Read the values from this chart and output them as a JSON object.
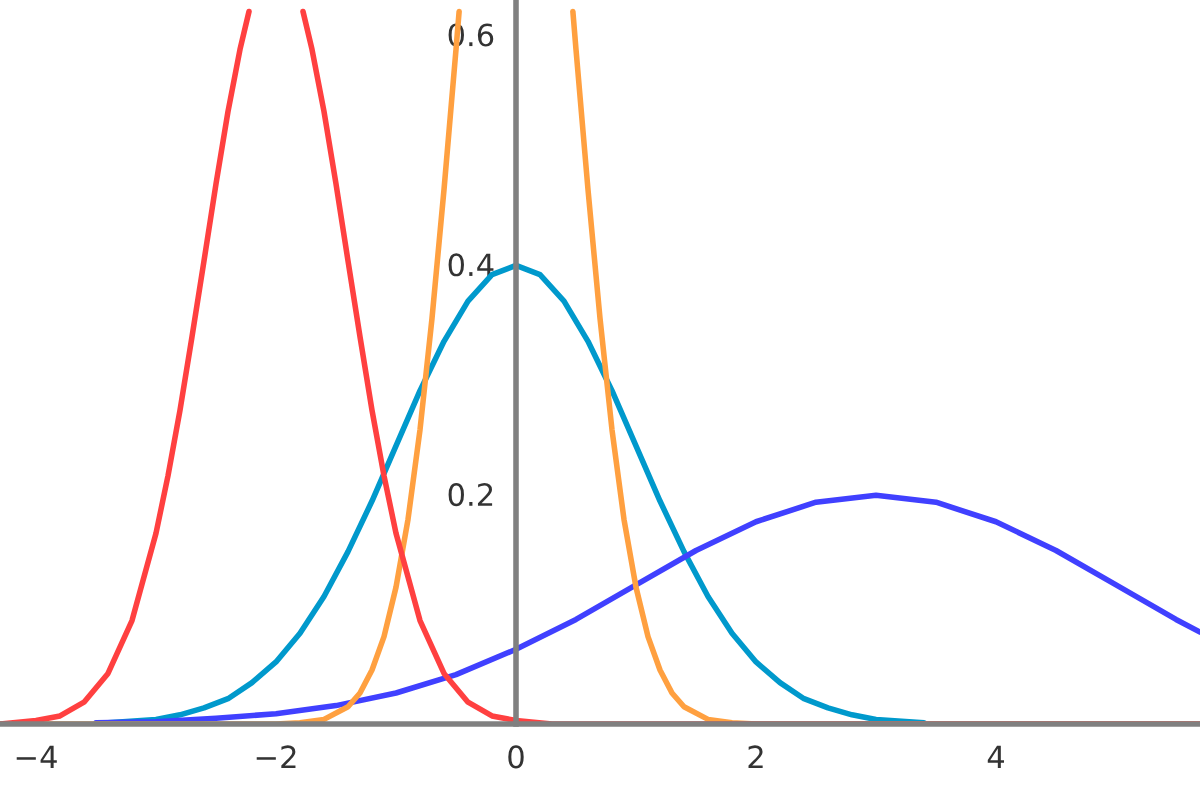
{
  "chart_data": {
    "type": "line",
    "xlim": [
      -4.3,
      5.7
    ],
    "ylim": [
      0,
      0.63
    ],
    "xticks": [
      {
        "value": -4,
        "label": "−4"
      },
      {
        "value": -2,
        "label": "−2"
      },
      0,
      2,
      4
    ],
    "yticks": [
      0.2,
      0.4,
      0.6
    ],
    "grid": false,
    "legend": false,
    "marker": "none",
    "line_style": "solid",
    "series": [
      {
        "color": "#0099cc",
        "x": [
          -3.4,
          -3,
          -2.8,
          -2.6,
          -2.4,
          -2.2,
          -2,
          -1.8,
          -1.6,
          -1.4,
          -1.2,
          -1,
          -0.8,
          -0.6,
          -0.4,
          -0.2,
          0,
          0.2,
          0.4,
          0.6,
          0.8,
          1,
          1.2,
          1.4,
          1.6,
          1.8,
          2,
          2.2,
          2.4,
          2.6,
          2.8,
          3,
          3.4
        ],
        "values": [
          0.001,
          0.004,
          0.008,
          0.014,
          0.022,
          0.036,
          0.054,
          0.079,
          0.111,
          0.15,
          0.194,
          0.242,
          0.29,
          0.333,
          0.368,
          0.391,
          0.399,
          0.391,
          0.368,
          0.333,
          0.29,
          0.242,
          0.194,
          0.15,
          0.111,
          0.079,
          0.054,
          0.036,
          0.022,
          0.014,
          0.008,
          0.004,
          0.001
        ]
      },
      {
        "color": "#4040ff",
        "x": [
          -3.5,
          -3,
          -2.5,
          -2,
          -1.5,
          -1,
          -0.5,
          0,
          0.5,
          1,
          1.5,
          2,
          2.5,
          3,
          3.5,
          4,
          4.5,
          5,
          5.5,
          5.7
        ],
        "values": [
          0.001,
          0.002,
          0.005,
          0.009,
          0.016,
          0.027,
          0.043,
          0.065,
          0.091,
          0.121,
          0.151,
          0.176,
          0.193,
          0.199,
          0.193,
          0.176,
          0.151,
          0.121,
          0.091,
          0.08
        ]
      },
      {
        "color": "#ffa040",
        "x": [
          -4.3,
          -2,
          -1.8,
          -1.6,
          -1.4,
          -1.3,
          -1.2,
          -1.1,
          -1,
          -0.9,
          -0.8,
          -0.7,
          -0.6,
          -0.5,
          -0.474,
          0,
          0.474,
          0.5,
          0.6,
          0.7,
          0.8,
          0.9,
          1,
          1.1,
          1.2,
          1.3,
          1.4,
          1.6,
          1.8,
          2,
          5.7
        ],
        "values": [
          0,
          0,
          0.001,
          0.004,
          0.015,
          0.027,
          0.047,
          0.076,
          0.119,
          0.178,
          0.256,
          0.353,
          0.465,
          0.587,
          0.62,
          null,
          0.62,
          0.587,
          0.465,
          0.353,
          0.256,
          0.178,
          0.119,
          0.076,
          0.047,
          0.027,
          0.015,
          0.004,
          0.001,
          0,
          0
        ]
      },
      {
        "color": "#ff4040",
        "x": [
          -4.3,
          -4,
          -3.8,
          -3.6,
          -3.4,
          -3.2,
          -3,
          -2.9,
          -2.8,
          -2.7,
          -2.6,
          -2.5,
          -2.4,
          -2.3,
          -2.225,
          -2,
          -1.775,
          -1.7,
          -1.6,
          -1.5,
          -1.4,
          -1.3,
          -1.2,
          -1.1,
          -1,
          -0.8,
          -0.6,
          -0.4,
          -0.2,
          0,
          0.3,
          5.7
        ],
        "values": [
          0,
          0.003,
          0.007,
          0.019,
          0.044,
          0.09,
          0.166,
          0.216,
          0.273,
          0.337,
          0.403,
          0.47,
          0.533,
          0.587,
          0.62,
          null,
          0.62,
          0.587,
          0.533,
          0.47,
          0.403,
          0.337,
          0.273,
          0.216,
          0.166,
          0.09,
          0.044,
          0.019,
          0.007,
          0.003,
          0,
          0
        ]
      }
    ]
  }
}
